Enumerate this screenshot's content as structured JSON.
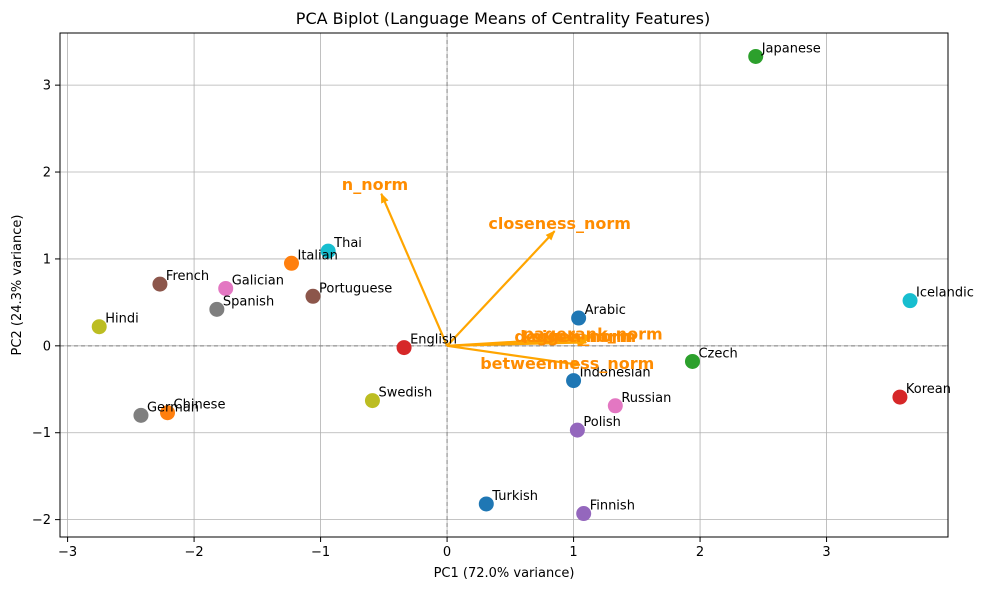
{
  "chart_data": {
    "type": "scatter",
    "title": "PCA Biplot (Language Means of Centrality Features)",
    "xlabel": "PC1 (72.0% variance)",
    "ylabel": "PC2 (24.3% variance)",
    "xlim": [
      -3.06,
      3.96
    ],
    "ylim": [
      -2.2,
      3.6
    ],
    "xticks": [
      -3,
      -2,
      -1,
      0,
      1,
      2,
      3
    ],
    "yticks": [
      -2,
      -1,
      0,
      1,
      2,
      3
    ],
    "grid": true,
    "points": [
      {
        "label": "Japanese",
        "x": 2.44,
        "y": 3.33,
        "color": "#2ca02c"
      },
      {
        "label": "Thai",
        "x": -0.94,
        "y": 1.09,
        "color": "#17becf"
      },
      {
        "label": "Italian",
        "x": -1.23,
        "y": 0.95,
        "color": "#ff7f0e"
      },
      {
        "label": "French",
        "x": -2.27,
        "y": 0.71,
        "color": "#8c564b"
      },
      {
        "label": "Galician",
        "x": -1.75,
        "y": 0.66,
        "color": "#e377c2"
      },
      {
        "label": "Portuguese",
        "x": -1.06,
        "y": 0.57,
        "color": "#8c564b"
      },
      {
        "label": "Spanish",
        "x": -1.82,
        "y": 0.42,
        "color": "#7f7f7f"
      },
      {
        "label": "Icelandic",
        "x": 3.66,
        "y": 0.52,
        "color": "#17becf"
      },
      {
        "label": "Arabic",
        "x": 1.04,
        "y": 0.32,
        "color": "#1f77b4"
      },
      {
        "label": "Hindi",
        "x": -2.75,
        "y": 0.22,
        "color": "#bcbd22"
      },
      {
        "label": "English",
        "x": -0.34,
        "y": -0.02,
        "color": "#d62728"
      },
      {
        "label": "Czech",
        "x": 1.94,
        "y": -0.18,
        "color": "#2ca02c"
      },
      {
        "label": "Indonesian",
        "x": 1.0,
        "y": -0.4,
        "color": "#1f77b4"
      },
      {
        "label": "Korean",
        "x": 3.58,
        "y": -0.59,
        "color": "#d62728"
      },
      {
        "label": "Swedish",
        "x": -0.59,
        "y": -0.63,
        "color": "#bcbd22"
      },
      {
        "label": "Russian",
        "x": 1.33,
        "y": -0.69,
        "color": "#e377c2"
      },
      {
        "label": "German",
        "x": -2.42,
        "y": -0.8,
        "color": "#7f7f7f"
      },
      {
        "label": "Chinese",
        "x": -2.21,
        "y": -0.77,
        "color": "#ff7f0e"
      },
      {
        "label": "Polish",
        "x": 1.03,
        "y": -0.97,
        "color": "#9467bd"
      },
      {
        "label": "Turkish",
        "x": 0.31,
        "y": -1.82,
        "color": "#1f77b4"
      },
      {
        "label": "Finnish",
        "x": 1.08,
        "y": -1.93,
        "color": "#9467bd"
      }
    ],
    "loadings": [
      {
        "label": "n_norm",
        "x": -0.52,
        "y": 1.75,
        "lx": -0.57,
        "ly": 1.85
      },
      {
        "label": "closeness_norm",
        "x": 0.85,
        "y": 1.32,
        "lx": 0.89,
        "ly": 1.4
      },
      {
        "label": "pagerank_norm",
        "x": 1.15,
        "y": 0.1,
        "lx": 1.15,
        "ly": 0.13
      },
      {
        "label": "degree_norm",
        "x": 1.1,
        "y": 0.04,
        "lx": 1.0,
        "ly": 0.1
      },
      {
        "label": "eigen_norm",
        "x": 1.12,
        "y": 0.07,
        "lx": 1.08,
        "ly": 0.1
      },
      {
        "label": "betweenness_norm",
        "x": 1.05,
        "y": -0.22,
        "lx": 0.95,
        "ly": -0.21
      }
    ],
    "loading_color": "#ffa500",
    "loading_label_color": "#ff8c00"
  }
}
